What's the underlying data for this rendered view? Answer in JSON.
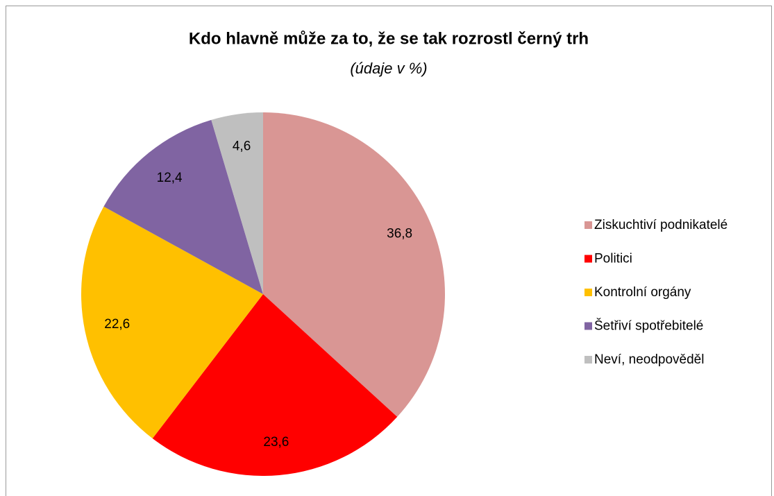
{
  "chart_data": {
    "type": "pie",
    "title": "Kdo hlavně může za to, že se tak rozrostl černý trh",
    "subtitle": "(údaje v %)",
    "categories": [
      "Ziskuchtiví podnikatelé",
      "Politici",
      "Kontrolní orgány",
      "Šetřiví spotřebitelé",
      "Neví, neodpověděl"
    ],
    "values": [
      36.8,
      23.6,
      22.6,
      12.4,
      4.6
    ],
    "value_labels": [
      "36,8",
      "23,6",
      "22,6",
      "12,4",
      "4,6"
    ],
    "colors": [
      "#d99694",
      "#ff0000",
      "#ffc000",
      "#8064a2",
      "#bfbfbf"
    ],
    "legend": "right"
  }
}
